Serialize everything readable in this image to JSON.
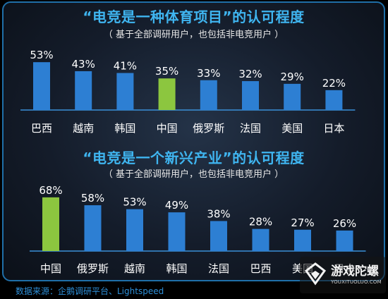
{
  "chart_data": [
    {
      "type": "bar",
      "title": "“电竞是一种体育项目”的认可程度",
      "subtitle": "（ 基于全部调研用户，也包括非电竞用户 ）",
      "categories": [
        "巴西",
        "越南",
        "韩国",
        "中国",
        "俄罗斯",
        "法国",
        "美国",
        "日本"
      ],
      "values": [
        53,
        43,
        41,
        35,
        33,
        32,
        29,
        22
      ],
      "value_labels": [
        "53%",
        "43%",
        "41%",
        "35%",
        "33%",
        "32%",
        "29%",
        "22%"
      ],
      "highlight": "中国",
      "grid": false
    },
    {
      "type": "bar",
      "title": "“电竞是一个新兴产业”的认可程度",
      "subtitle": "（ 基于全部调研用户，也包括非电竞用户 ）",
      "categories": [
        "中国",
        "俄罗斯",
        "越南",
        "韩国",
        "法国",
        "巴西",
        "美国",
        "日本"
      ],
      "values": [
        68,
        58,
        53,
        49,
        38,
        28,
        27,
        26
      ],
      "value_labels": [
        "68%",
        "58%",
        "53%",
        "49%",
        "38%",
        "28%",
        "27%",
        "26%"
      ],
      "highlight": "中国",
      "grid": false
    }
  ],
  "source": "数据来源：企鹅调研平台、Lightspeed",
  "watermark": {
    "name": "游戏陀螺",
    "url": "YOUXITUOLUO.COM"
  },
  "colors": {
    "bar": "#2d7fd3",
    "highlight": "#8cc63f",
    "baseline": "#3a90d8",
    "title": "#3fb5f0"
  }
}
